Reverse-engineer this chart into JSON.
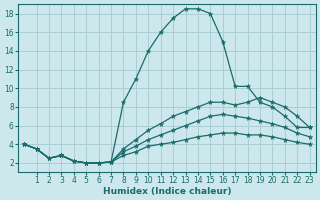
{
  "xlabel": "Humidex (Indice chaleur)",
  "ylabel": "",
  "bg_color": "#cce8ec",
  "grid_color": "#aacdd4",
  "line_color": "#1a6b6b",
  "xlim": [
    -0.5,
    23.5
  ],
  "ylim": [
    1,
    19
  ],
  "xticks": [
    1,
    2,
    3,
    4,
    5,
    6,
    7,
    8,
    9,
    10,
    11,
    12,
    13,
    14,
    15,
    16,
    17,
    18,
    19,
    20,
    21,
    22,
    23
  ],
  "yticks": [
    2,
    4,
    6,
    8,
    10,
    12,
    14,
    16,
    18
  ],
  "lines": [
    {
      "x": [
        0,
        1,
        2,
        3,
        4,
        5,
        6,
        7,
        8,
        9,
        10,
        11,
        12,
        13,
        14,
        15,
        16,
        17,
        18,
        19,
        20,
        21,
        22,
        23
      ],
      "y": [
        4,
        3.5,
        2.5,
        2.8,
        2.2,
        2.0,
        2.0,
        2.1,
        8.5,
        11.0,
        14.0,
        16.0,
        17.5,
        18.5,
        18.5,
        18.0,
        15.0,
        10.2,
        10.2,
        8.5,
        8.0,
        7.0,
        5.8,
        5.8
      ]
    },
    {
      "x": [
        0,
        1,
        2,
        3,
        4,
        5,
        6,
        7,
        8,
        9,
        10,
        11,
        12,
        13,
        14,
        15,
        16,
        17,
        18,
        19,
        20,
        21,
        22,
        23
      ],
      "y": [
        4,
        3.5,
        2.5,
        2.8,
        2.2,
        2.0,
        2.0,
        2.1,
        3.5,
        4.5,
        5.5,
        6.2,
        7.0,
        7.5,
        8.0,
        8.5,
        8.5,
        8.2,
        8.5,
        9.0,
        8.5,
        8.0,
        7.0,
        5.8
      ]
    },
    {
      "x": [
        0,
        1,
        2,
        3,
        4,
        5,
        6,
        7,
        8,
        9,
        10,
        11,
        12,
        13,
        14,
        15,
        16,
        17,
        18,
        19,
        20,
        21,
        22,
        23
      ],
      "y": [
        4,
        3.5,
        2.5,
        2.8,
        2.2,
        2.0,
        2.0,
        2.1,
        3.2,
        3.8,
        4.5,
        5.0,
        5.5,
        6.0,
        6.5,
        7.0,
        7.2,
        7.0,
        6.8,
        6.5,
        6.2,
        5.8,
        5.2,
        4.8
      ]
    },
    {
      "x": [
        0,
        1,
        2,
        3,
        4,
        5,
        6,
        7,
        8,
        9,
        10,
        11,
        12,
        13,
        14,
        15,
        16,
        17,
        18,
        19,
        20,
        21,
        22,
        23
      ],
      "y": [
        4,
        3.5,
        2.5,
        2.8,
        2.2,
        2.0,
        2.0,
        2.1,
        2.8,
        3.2,
        3.8,
        4.0,
        4.2,
        4.5,
        4.8,
        5.0,
        5.2,
        5.2,
        5.0,
        5.0,
        4.8,
        4.5,
        4.2,
        4.0
      ]
    }
  ]
}
